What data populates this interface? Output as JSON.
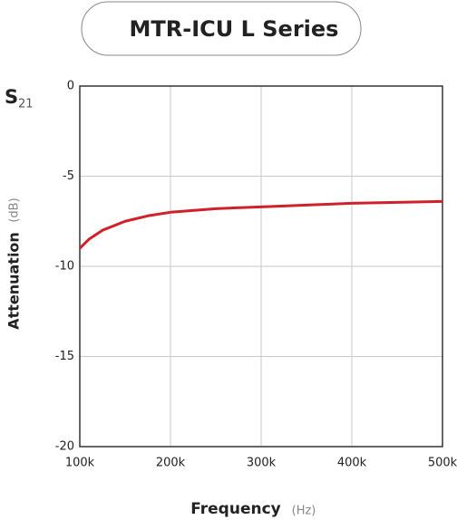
{
  "chart_data": {
    "type": "line",
    "title": "MTR-ICU L Series",
    "s_label": "S",
    "s_subscript": "21",
    "ylabel": "Attenuation",
    "yunit": "(dB)",
    "xlabel": "Frequency",
    "xunit": "(Hz)",
    "x": [
      100000,
      110000,
      125000,
      150000,
      175000,
      200000,
      250000,
      300000,
      350000,
      400000,
      450000,
      500000
    ],
    "values": [
      -9.0,
      -8.5,
      -8.0,
      -7.5,
      -7.2,
      -7.0,
      -6.8,
      -6.7,
      -6.6,
      -6.5,
      -6.45,
      -6.4
    ],
    "color": "#d0202a",
    "xlim": [
      100000,
      500000
    ],
    "xticks": [
      {
        "value": 100000,
        "label": "100k"
      },
      {
        "value": 200000,
        "label": "200k"
      },
      {
        "value": 300000,
        "label": "300k"
      },
      {
        "value": 400000,
        "label": "400k"
      },
      {
        "value": 500000,
        "label": "500k"
      }
    ],
    "ylim": [
      -20,
      0
    ],
    "yticks": [
      -20,
      -15,
      -10,
      -5,
      0
    ],
    "grid": true
  }
}
